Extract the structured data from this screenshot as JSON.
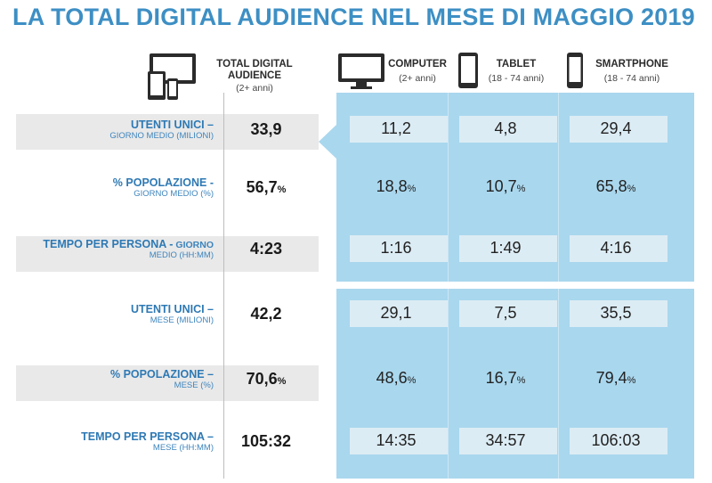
{
  "title": "LA TOTAL DIGITAL AUDIENCE NEL MESE DI MAGGIO 2019",
  "columns": {
    "total": {
      "label_line1": "TOTAL DIGITAL",
      "label_line2": "AUDIENCE",
      "sub": "(2+ anni)",
      "icon": "multi-device-icon"
    },
    "computer": {
      "label": "COMPUTER",
      "sub": "(2+ anni)",
      "icon": "monitor-icon"
    },
    "tablet": {
      "label": "TABLET",
      "sub": "(18 - 74 anni)",
      "icon": "tablet-icon"
    },
    "smartphone": {
      "label": "SMARTPHONE",
      "sub": "(18 - 74 anni)",
      "icon": "smartphone-icon"
    }
  },
  "rows": [
    {
      "label": "UTENTI UNICI –",
      "sub": "GIORNO MEDIO (MILIONI)",
      "total": "33,9",
      "total_suffix": "",
      "computer": "11,2",
      "computer_suffix": "",
      "tablet": "4,8",
      "tablet_suffix": "",
      "smartphone": "29,4",
      "smartphone_suffix": ""
    },
    {
      "label": "% POPOLAZIONE -",
      "sub": "GIORNO MEDIO (%)",
      "total": "56,7",
      "total_suffix": "%",
      "computer": "18,8",
      "computer_suffix": "%",
      "tablet": "10,7",
      "tablet_suffix": "%",
      "smartphone": "65,8",
      "smartphone_suffix": "%"
    },
    {
      "label": "TEMPO PER PERSONA -",
      "label_inline_sub": "GIORNO",
      "sub": "MEDIO (HH:MM)",
      "total": "4:23",
      "total_suffix": "",
      "computer": "1:16",
      "computer_suffix": "",
      "tablet": "1:49",
      "tablet_suffix": "",
      "smartphone": "4:16",
      "smartphone_suffix": ""
    },
    {
      "label": "UTENTI UNICI –",
      "sub": "MESE (MILIONI)",
      "total": "42,2",
      "total_suffix": "",
      "computer": "29,1",
      "computer_suffix": "",
      "tablet": "7,5",
      "tablet_suffix": "",
      "smartphone": "35,5",
      "smartphone_suffix": ""
    },
    {
      "label": "% POPOLAZIONE –",
      "sub": "MESE (%)",
      "total": "70,6",
      "total_suffix": "%",
      "computer": "48,6",
      "computer_suffix": "%",
      "tablet": "16,7",
      "tablet_suffix": "%",
      "smartphone": "79,4",
      "smartphone_suffix": "%"
    },
    {
      "label": "TEMPO PER PERSONA –",
      "sub": "MESE (HH:MM)",
      "total": "105:32",
      "total_suffix": "",
      "computer": "14:35",
      "computer_suffix": "",
      "tablet": "34:57",
      "tablet_suffix": "",
      "smartphone": "106:03",
      "smartphone_suffix": ""
    }
  ],
  "colors": {
    "title": "#3d8fc4",
    "panel": "#a9d7ee",
    "label": "#2e79b4",
    "band": "#e9e9e9"
  },
  "chart_data": {
    "type": "table",
    "title": "LA TOTAL DIGITAL AUDIENCE NEL MESE DI MAGGIO 2019",
    "columns": [
      "TOTAL DIGITAL AUDIENCE (2+ anni)",
      "COMPUTER (2+ anni)",
      "TABLET (18 - 74 anni)",
      "SMARTPHONE (18 - 74 anni)"
    ],
    "rows": [
      {
        "metric": "UTENTI UNICI – GIORNO MEDIO (MILIONI)",
        "values": [
          33.9,
          11.2,
          4.8,
          29.4
        ]
      },
      {
        "metric": "% POPOLAZIONE - GIORNO MEDIO (%)",
        "values": [
          56.7,
          18.8,
          10.7,
          65.8
        ]
      },
      {
        "metric": "TEMPO PER PERSONA - GIORNO MEDIO (HH:MM)",
        "values": [
          "4:23",
          "1:16",
          "1:49",
          "4:16"
        ]
      },
      {
        "metric": "UTENTI UNICI – MESE (MILIONI)",
        "values": [
          42.2,
          29.1,
          7.5,
          35.5
        ]
      },
      {
        "metric": "% POPOLAZIONE – MESE (%)",
        "values": [
          70.6,
          48.6,
          16.7,
          79.4
        ]
      },
      {
        "metric": "TEMPO PER PERSONA – MESE (HH:MM)",
        "values": [
          "105:32",
          "14:35",
          "34:57",
          "106:03"
        ]
      }
    ]
  }
}
